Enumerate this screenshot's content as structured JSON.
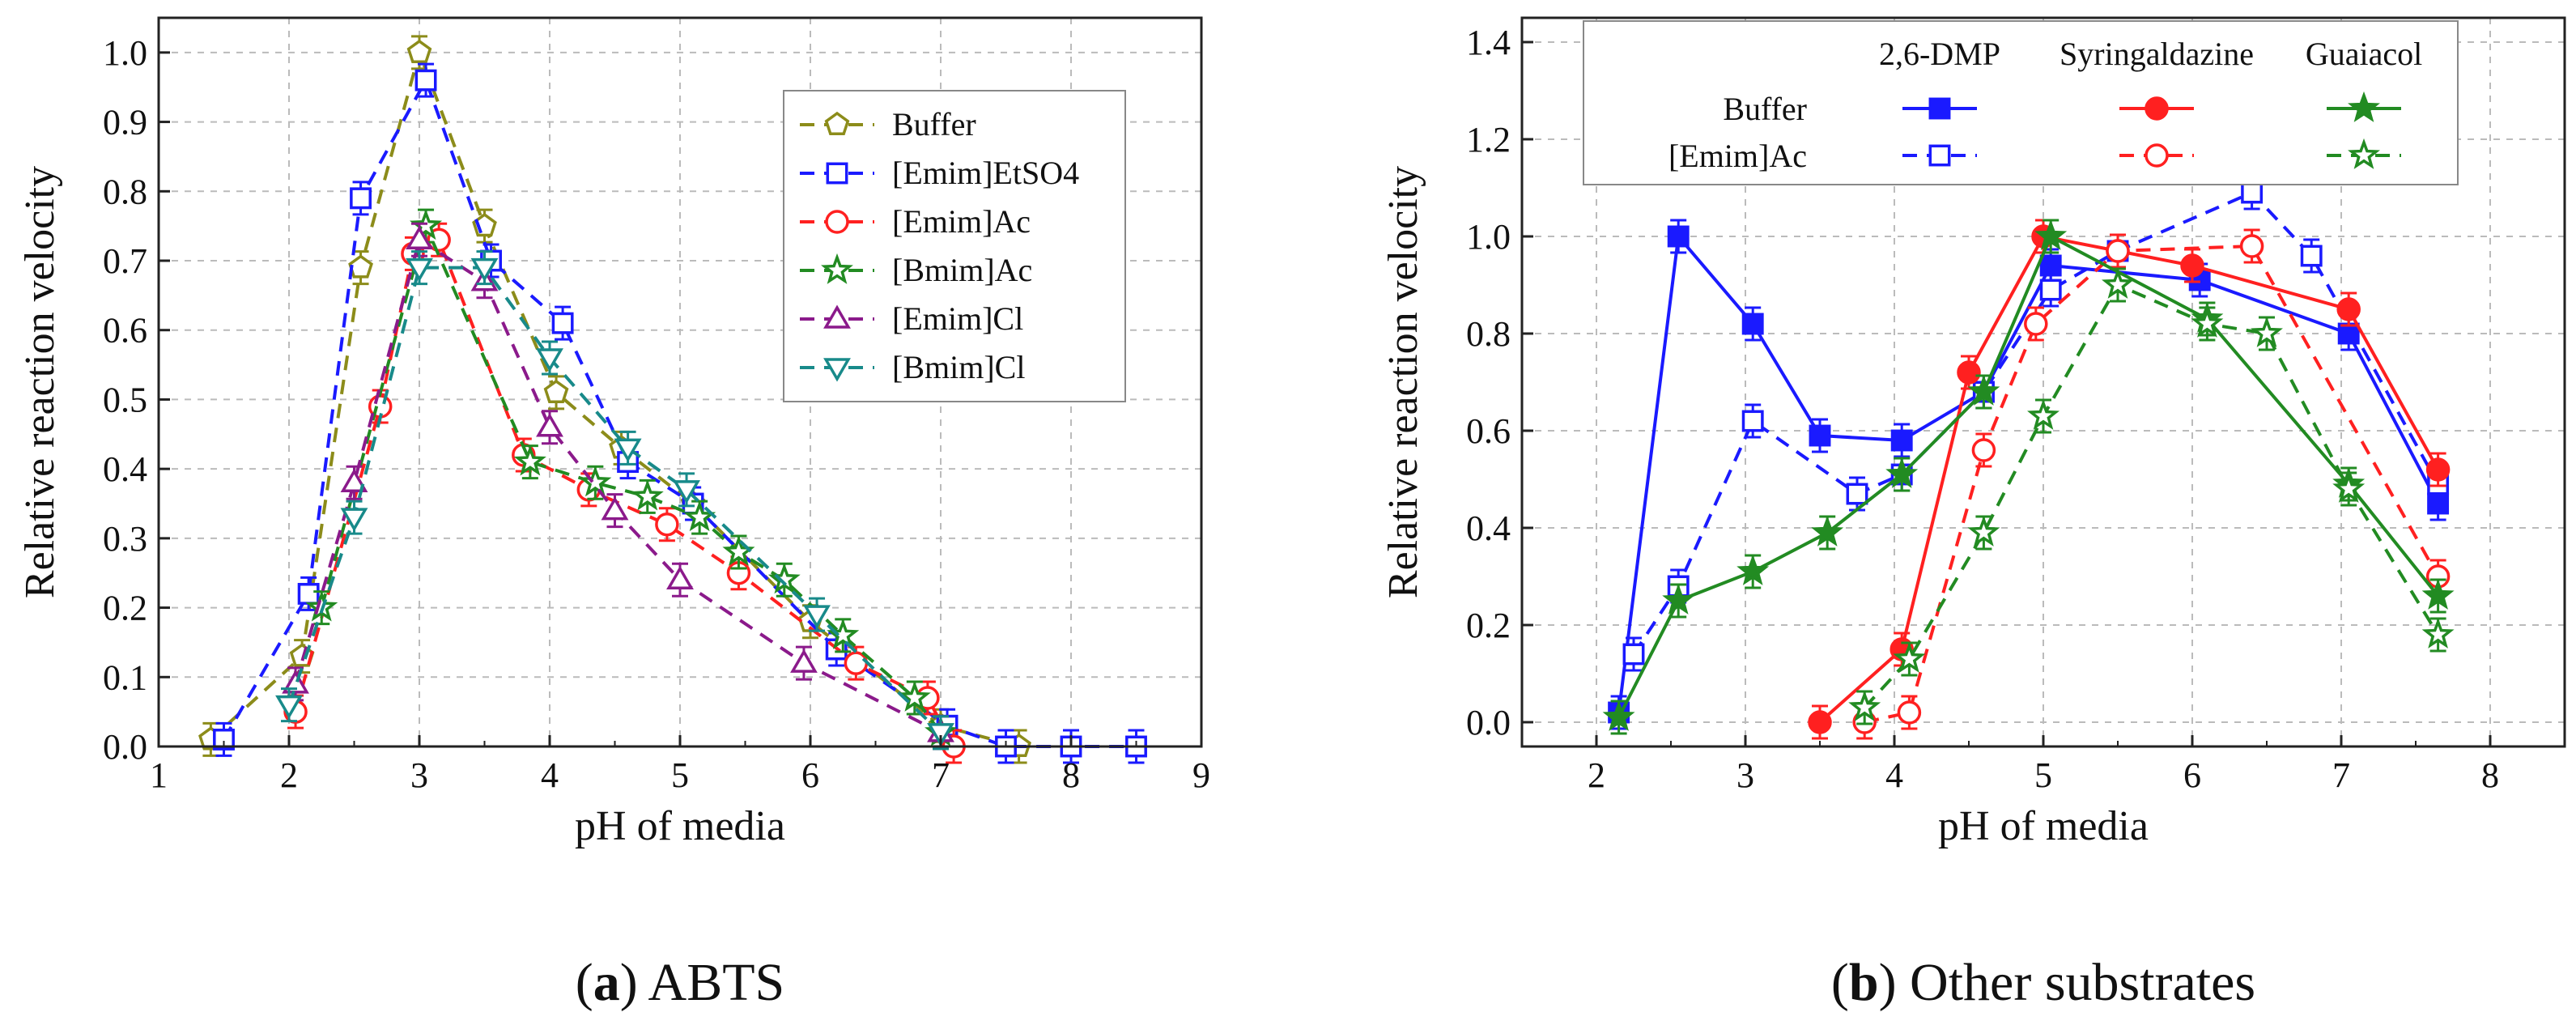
{
  "chart_data": [
    {
      "id": "a",
      "type": "line",
      "caption": {
        "label": "a",
        "text": " ABTS"
      },
      "xlabel": "pH of media",
      "ylabel": "Relative reaction velocity",
      "xlim": [
        1,
        9
      ],
      "ylim": [
        0,
        1.05
      ],
      "xticks": [
        "1",
        "2",
        "3",
        "4",
        "5",
        "6",
        "7",
        "8",
        "9"
      ],
      "yticks": [
        "0.0",
        "0.1",
        "0.2",
        "0.3",
        "0.4",
        "0.5",
        "0.6",
        "0.7",
        "0.8",
        "0.9",
        "1.0"
      ],
      "grid": true,
      "legend_position": "top-right",
      "series": [
        {
          "name": "Buffer",
          "color": "#8c8c1a",
          "marker": "pentagon",
          "dashed": true,
          "x": [
            1.4,
            2.1,
            2.55,
            3.0,
            3.5,
            4.05,
            4.55,
            5.1,
            6.0,
            7.0,
            7.6
          ],
          "y": [
            0.01,
            0.13,
            0.69,
            1.0,
            0.75,
            0.51,
            0.43,
            0.35,
            0.18,
            0.03,
            0.0
          ]
        },
        {
          "name": "[Emim]EtSO4",
          "color": "#1a1aff",
          "marker": "square",
          "dashed": true,
          "x": [
            1.5,
            2.15,
            2.55,
            3.05,
            3.55,
            4.1,
            4.6,
            5.1,
            6.2,
            7.05,
            7.5,
            8.0,
            8.5
          ],
          "y": [
            0.01,
            0.22,
            0.79,
            0.96,
            0.7,
            0.61,
            0.41,
            0.35,
            0.14,
            0.03,
            0.0,
            0.0,
            0.0
          ]
        },
        {
          "name": "[Emim]Ac",
          "color": "#ff2020",
          "marker": "circle",
          "dashed": true,
          "x": [
            2.05,
            2.7,
            2.95,
            3.15,
            3.8,
            4.3,
            4.9,
            5.45,
            6.35,
            6.9,
            7.1
          ],
          "y": [
            0.05,
            0.49,
            0.71,
            0.73,
            0.42,
            0.37,
            0.32,
            0.25,
            0.12,
            0.07,
            0.0
          ]
        },
        {
          "name": "[Bmim]Ac",
          "color": "#228b22",
          "marker": "star",
          "dashed": true,
          "x": [
            2.25,
            3.05,
            3.85,
            4.35,
            4.75,
            5.15,
            5.45,
            5.8,
            6.25,
            6.8,
            7.0
          ],
          "y": [
            0.2,
            0.75,
            0.41,
            0.38,
            0.36,
            0.33,
            0.28,
            0.24,
            0.16,
            0.07,
            0.02
          ]
        },
        {
          "name": "[Emim]Cl",
          "color": "#8b1a8b",
          "marker": "triangle-up",
          "dashed": true,
          "x": [
            2.05,
            2.5,
            3.0,
            3.5,
            4.0,
            4.5,
            5.0,
            5.95,
            7.0
          ],
          "y": [
            0.09,
            0.38,
            0.73,
            0.67,
            0.46,
            0.34,
            0.24,
            0.12,
            0.02
          ]
        },
        {
          "name": "[Bmim]Cl",
          "color": "#188a8a",
          "marker": "triangle-down",
          "dashed": true,
          "x": [
            2.0,
            2.5,
            3.0,
            3.5,
            4.0,
            4.6,
            5.05,
            6.05,
            7.0
          ],
          "y": [
            0.06,
            0.33,
            0.69,
            0.69,
            0.56,
            0.43,
            0.37,
            0.19,
            0.02
          ]
        }
      ]
    },
    {
      "id": "b",
      "type": "line",
      "caption": {
        "label": "b",
        "text": " Other substrates"
      },
      "xlabel": "pH of media",
      "ylabel": "Relative reaction velocity",
      "xlim": [
        1.5,
        8.5
      ],
      "ylim": [
        -0.05,
        1.45
      ],
      "xticks": [
        "2",
        "3",
        "4",
        "5",
        "6",
        "7",
        "8"
      ],
      "yticks": [
        "0.0",
        "0.2",
        "0.4",
        "0.6",
        "0.8",
        "1.0",
        "1.2",
        "1.4"
      ],
      "grid": true,
      "legend_position": "top",
      "legend": {
        "columns": [
          "2,6-DMP",
          "Syringaldazine",
          "Guaiacol"
        ],
        "rows": [
          "Buffer",
          "[Emim]Ac"
        ]
      },
      "series": [
        {
          "name": "2,6-DMP Buffer",
          "color": "#1a1aff",
          "marker": "square-filled",
          "dashed": false,
          "x": [
            2.15,
            2.55,
            3.05,
            3.5,
            4.05,
            4.6,
            5.05,
            6.05,
            7.05,
            7.65
          ],
          "y": [
            0.02,
            1.0,
            0.82,
            0.59,
            0.58,
            0.68,
            0.94,
            0.91,
            0.8,
            0.45
          ]
        },
        {
          "name": "2,6-DMP [Emim]Ac",
          "color": "#1a1aff",
          "marker": "square",
          "dashed": true,
          "x": [
            2.25,
            2.55,
            3.05,
            3.75,
            4.05,
            4.6,
            5.05,
            5.5,
            6.4,
            6.8,
            7.65
          ],
          "y": [
            0.14,
            0.28,
            0.62,
            0.47,
            0.51,
            0.68,
            0.89,
            0.97,
            1.09,
            0.96,
            0.49
          ]
        },
        {
          "name": "Syringaldazine Buffer",
          "color": "#ff2020",
          "marker": "circle-filled",
          "dashed": false,
          "x": [
            3.5,
            4.05,
            4.5,
            5.0,
            5.5,
            6.0,
            7.05,
            7.65
          ],
          "y": [
            0.0,
            0.15,
            0.72,
            1.0,
            0.97,
            0.94,
            0.85,
            0.52
          ]
        },
        {
          "name": "Syringaldazine [Emim]Ac",
          "color": "#ff2020",
          "marker": "circle",
          "dashed": true,
          "x": [
            3.8,
            4.1,
            4.6,
            4.95,
            5.5,
            6.4,
            7.65
          ],
          "y": [
            0.0,
            0.02,
            0.56,
            0.82,
            0.97,
            0.98,
            0.3
          ]
        },
        {
          "name": "Guaiacol Buffer",
          "color": "#228b22",
          "marker": "star-filled",
          "dashed": false,
          "x": [
            2.15,
            2.55,
            3.05,
            3.55,
            4.05,
            4.6,
            5.05,
            6.1,
            7.05,
            7.65
          ],
          "y": [
            0.01,
            0.25,
            0.31,
            0.39,
            0.51,
            0.68,
            1.0,
            0.83,
            0.49,
            0.26
          ]
        },
        {
          "name": "Guaiacol [Emim]Ac",
          "color": "#228b22",
          "marker": "star",
          "dashed": true,
          "x": [
            3.8,
            4.1,
            4.6,
            5.0,
            5.5,
            6.1,
            6.5,
            7.05,
            7.65
          ],
          "y": [
            0.03,
            0.13,
            0.39,
            0.63,
            0.9,
            0.82,
            0.8,
            0.48,
            0.18
          ]
        }
      ]
    }
  ]
}
